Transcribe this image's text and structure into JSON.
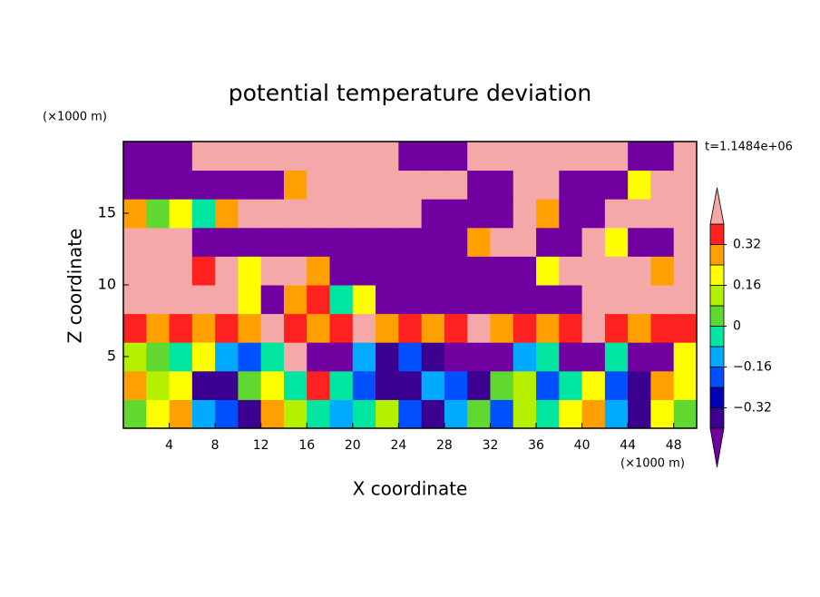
{
  "chart_data": {
    "type": "contour",
    "title": "potential temperature deviation",
    "x_label": "X coordinate",
    "y_label": "Z coordinate",
    "x_unit": "(×1000 m)",
    "y_unit": "(×1000 m)",
    "annotation": "t=1.1484e+06",
    "xlim": [
      0,
      50
    ],
    "ylim": [
      0,
      20
    ],
    "xticks": [
      4,
      8,
      12,
      16,
      20,
      24,
      28,
      32,
      36,
      40,
      44,
      48
    ],
    "yticks": [
      5,
      10,
      15
    ],
    "x": [
      1,
      3,
      5,
      7,
      9,
      11,
      13,
      15,
      17,
      19,
      21,
      23,
      25,
      27,
      29,
      31,
      33,
      35,
      37,
      39,
      41,
      43,
      45,
      47,
      49
    ],
    "y": [
      1,
      3,
      5,
      7,
      9,
      11,
      13,
      15,
      17,
      19
    ],
    "z": [
      [
        0.04,
        0.2,
        0.28,
        -0.12,
        -0.2,
        -0.36,
        0.28,
        0.12,
        -0.04,
        -0.12,
        -0.04,
        0.12,
        -0.2,
        -0.36,
        -0.12,
        0.04,
        -0.2,
        0.12,
        -0.04,
        0.2,
        0.28,
        -0.12,
        -0.36,
        0.2,
        0.04
      ],
      [
        0.28,
        0.12,
        0.2,
        -0.36,
        -0.36,
        0.04,
        0.2,
        -0.04,
        0.36,
        -0.04,
        -0.2,
        -0.36,
        -0.36,
        -0.12,
        -0.2,
        -0.36,
        0.04,
        0.12,
        -0.2,
        -0.04,
        0.2,
        -0.2,
        -0.36,
        0.28,
        0.2
      ],
      [
        0.12,
        0.04,
        -0.04,
        0.2,
        -0.12,
        -0.2,
        -0.04,
        0.5,
        -0.5,
        -0.5,
        -0.12,
        -0.36,
        -0.2,
        -0.36,
        -0.5,
        -0.5,
        -0.5,
        -0.12,
        -0.04,
        -0.5,
        -0.5,
        -0.04,
        -0.5,
        -0.5,
        0.2
      ],
      [
        0.36,
        0.28,
        0.36,
        0.28,
        0.36,
        0.28,
        0.5,
        0.36,
        0.28,
        0.36,
        0.5,
        0.28,
        0.36,
        0.28,
        0.36,
        0.5,
        0.28,
        0.36,
        0.28,
        0.36,
        0.5,
        0.36,
        0.28,
        0.36,
        0.36
      ],
      [
        0.5,
        0.5,
        0.5,
        0.5,
        0.5,
        0.2,
        -0.5,
        0.28,
        0.36,
        -0.04,
        0.2,
        -0.5,
        -0.5,
        -0.5,
        -0.5,
        -0.5,
        -0.5,
        -0.5,
        -0.5,
        -0.5,
        0.5,
        0.5,
        0.5,
        0.5,
        0.5
      ],
      [
        0.5,
        0.5,
        0.5,
        0.36,
        0.5,
        0.2,
        0.5,
        0.5,
        0.28,
        -0.5,
        -0.5,
        -0.5,
        -0.5,
        -0.5,
        -0.5,
        -0.5,
        -0.5,
        -0.5,
        0.2,
        0.5,
        0.5,
        0.5,
        0.5,
        0.28,
        0.5
      ],
      [
        0.5,
        0.5,
        0.5,
        -0.5,
        -0.5,
        -0.5,
        -0.5,
        -0.5,
        -0.5,
        -0.5,
        -0.5,
        -0.5,
        -0.5,
        -0.5,
        -0.5,
        0.28,
        0.5,
        0.5,
        -0.5,
        -0.5,
        0.5,
        0.2,
        -0.5,
        -0.5,
        0.5
      ],
      [
        0.28,
        0.04,
        0.2,
        -0.04,
        0.28,
        0.5,
        0.5,
        0.5,
        0.5,
        0.5,
        0.5,
        0.5,
        0.5,
        -0.5,
        -0.5,
        -0.5,
        -0.5,
        0.5,
        0.28,
        -0.5,
        -0.5,
        0.5,
        0.5,
        0.5,
        0.5
      ],
      [
        -0.5,
        -0.5,
        -0.5,
        -0.5,
        -0.5,
        -0.5,
        -0.5,
        0.28,
        0.5,
        0.5,
        0.5,
        0.5,
        0.5,
        0.5,
        0.5,
        -0.5,
        -0.5,
        0.5,
        0.5,
        -0.5,
        -0.5,
        -0.5,
        0.2,
        0.5,
        0.5
      ],
      [
        -0.5,
        -0.5,
        -0.5,
        0.5,
        0.5,
        0.5,
        0.5,
        0.5,
        0.5,
        0.5,
        0.5,
        0.5,
        -0.5,
        -0.5,
        -0.5,
        0.5,
        0.5,
        0.5,
        0.5,
        0.5,
        0.5,
        0.5,
        -0.5,
        -0.5,
        0.5
      ]
    ],
    "levels": [
      -0.4,
      -0.32,
      -0.24,
      -0.16,
      -0.08,
      0,
      0.08,
      0.16,
      0.24,
      0.32,
      0.4
    ],
    "colors": [
      "#7000a0",
      "#3c0090",
      "#0000b4",
      "#0050ff",
      "#00aaff",
      "#00e6a0",
      "#60d830",
      "#b4f000",
      "#ffff00",
      "#ffa000",
      "#ff2020",
      "#f4a8a8"
    ],
    "colorbar_ticks": [
      {
        "value": -0.32,
        "label": "−0.32"
      },
      {
        "value": -0.16,
        "label": "−0.16"
      },
      0,
      0.16,
      0.32
    ]
  }
}
